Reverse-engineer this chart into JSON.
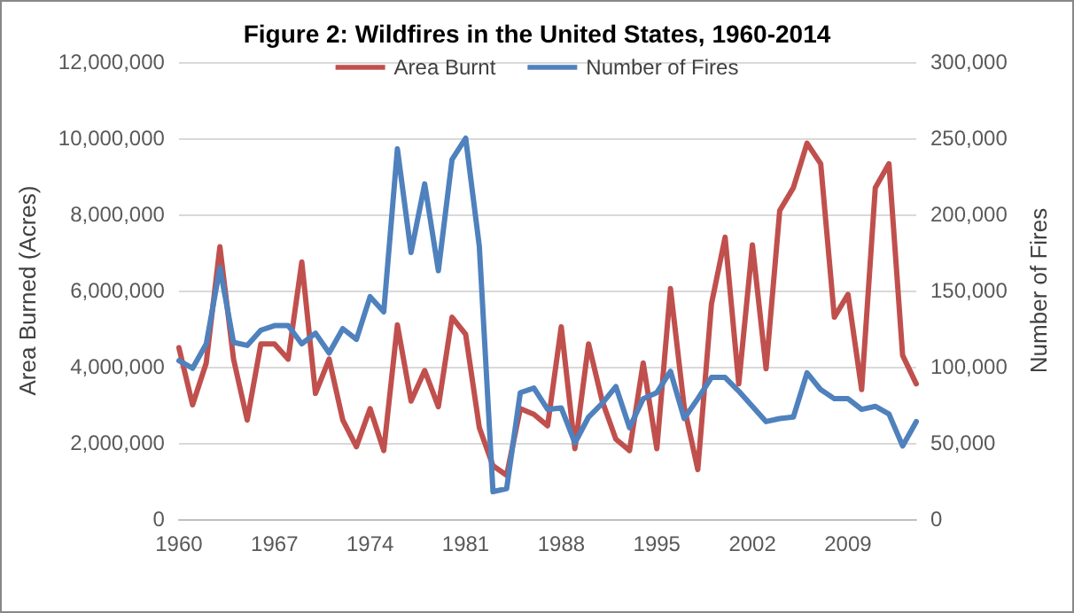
{
  "chart_data": {
    "type": "line",
    "title": "Figure 2: Wildfires in the United States, 1960-2014",
    "ylabel": "Area Burned (Acres)",
    "y2label": "Number of Fires",
    "x": [
      1960,
      1961,
      1962,
      1963,
      1964,
      1965,
      1966,
      1967,
      1968,
      1969,
      1970,
      1971,
      1972,
      1973,
      1974,
      1975,
      1976,
      1977,
      1978,
      1979,
      1980,
      1981,
      1982,
      1983,
      1984,
      1985,
      1986,
      1987,
      1988,
      1989,
      1990,
      1991,
      1992,
      1993,
      1994,
      1995,
      1996,
      1997,
      1998,
      1999,
      2000,
      2001,
      2002,
      2003,
      2004,
      2005,
      2006,
      2007,
      2008,
      2009,
      2010,
      2011,
      2012,
      2013,
      2014
    ],
    "series": [
      {
        "name": "Area Burnt",
        "color": "#c0504d",
        "values": [
          4500000,
          3000000,
          4100000,
          7150000,
          4200000,
          2600000,
          4600000,
          4600000,
          4200000,
          6750000,
          3300000,
          4200000,
          2600000,
          1900000,
          2900000,
          1800000,
          5100000,
          3100000,
          3900000,
          2950000,
          5300000,
          4850000,
          2400000,
          1400000,
          1150000,
          2900000,
          2750000,
          2450000,
          5050000,
          1850000,
          4600000,
          3100000,
          2100000,
          1800000,
          4100000,
          1850000,
          6050000,
          2950000,
          1300000,
          5650000,
          7400000,
          3550000,
          7200000,
          3950000,
          8100000,
          8700000,
          9870000,
          9330000,
          5300000,
          5900000,
          3400000,
          8700000,
          9330000,
          4300000,
          3550000
        ]
      },
      {
        "name": "Number of Fires",
        "color": "#4f81bd",
        "axis": "y2",
        "values": [
          104000,
          99000,
          115000,
          165000,
          116000,
          114000,
          124000,
          127000,
          127000,
          115000,
          122000,
          109000,
          125000,
          118000,
          146000,
          136000,
          243000,
          175000,
          220000,
          163000,
          236000,
          250000,
          179000,
          18000,
          20000,
          83000,
          86000,
          72000,
          73000,
          50000,
          67000,
          76000,
          87000,
          60000,
          79000,
          83000,
          97000,
          66000,
          79000,
          93000,
          93000,
          84000,
          74000,
          64000,
          66000,
          67000,
          96000,
          85000,
          79000,
          79000,
          72000,
          74000,
          69000,
          48000,
          64000
        ]
      }
    ],
    "xlim": [
      1960,
      2014
    ],
    "xticks": [
      1960,
      1967,
      1974,
      1981,
      1988,
      1995,
      2002,
      2009
    ],
    "ylim": [
      0,
      12000000
    ],
    "yticks": [
      0,
      {
        "value": 2000000,
        "label": "2,000,000"
      },
      {
        "value": 4000000,
        "label": "4,000,000"
      },
      {
        "value": 6000000,
        "label": "6,000,000"
      },
      {
        "value": 8000000,
        "label": "8,000,000"
      },
      {
        "value": 10000000,
        "label": "10,000,000"
      },
      {
        "value": 12000000,
        "label": "12,000,000"
      }
    ],
    "y2lim": [
      0,
      300000
    ],
    "y2ticks": [
      0,
      {
        "value": 50000,
        "label": "50,000"
      },
      {
        "value": 100000,
        "label": "100,000"
      },
      {
        "value": 150000,
        "label": "150,000"
      },
      {
        "value": 200000,
        "label": "200,000"
      },
      {
        "value": 250000,
        "label": "250,000"
      },
      {
        "value": 300000,
        "label": "300,000"
      }
    ],
    "grid": "y",
    "legend": "top",
    "marker": "none",
    "line_style": "solid"
  }
}
